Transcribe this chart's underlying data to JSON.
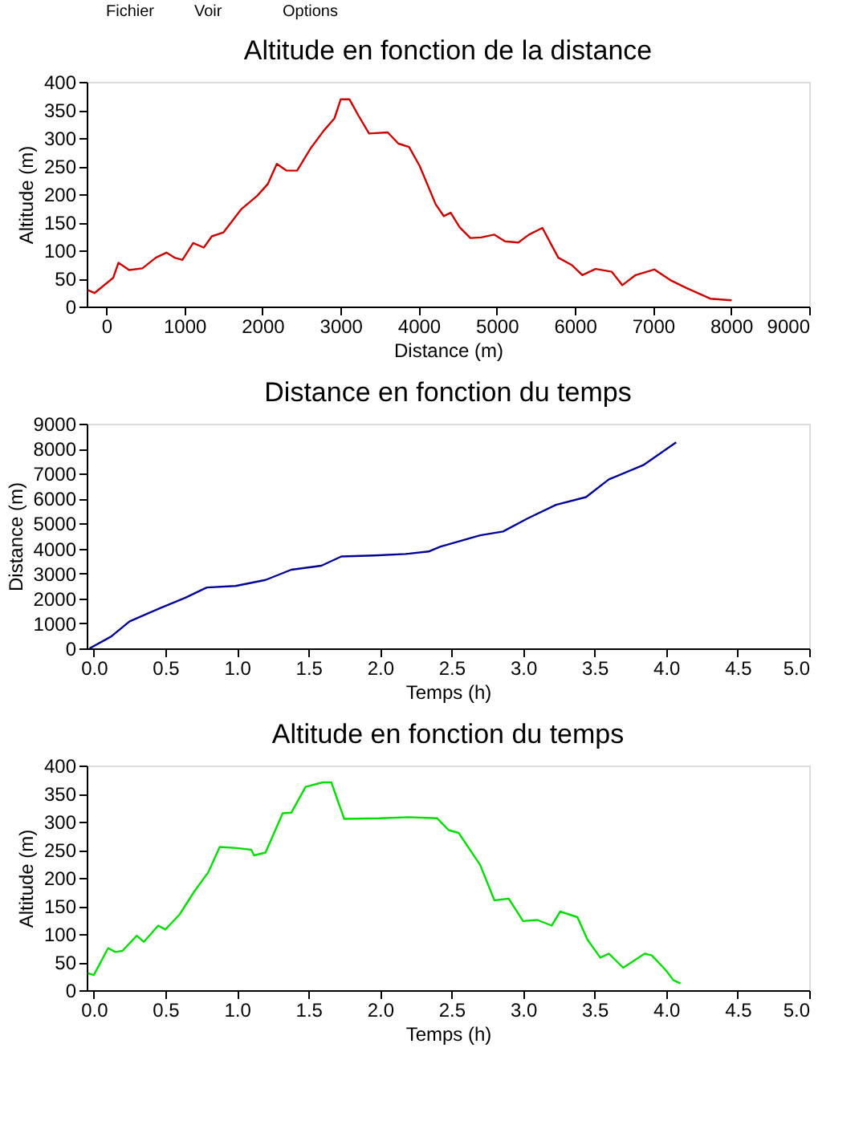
{
  "chart_data": [
    {
      "type": "line",
      "title": "Altitude en fonction de la distance",
      "xlabel": "Distance (m)",
      "ylabel": "Altitude (m)",
      "annotations": [
        "Fichier",
        "Voir",
        "Options"
      ],
      "grid": false,
      "legend": false,
      "line_style": "solid",
      "marker": "none",
      "x": [
        -232,
        -150,
        89,
        157,
        294,
        464,
        635,
        771,
        874,
        976,
        1113,
        1249,
        1352,
        1502,
        1727,
        1932,
        2068,
        2184,
        2307,
        2444,
        2614,
        2785,
        2922,
        3003,
        3113,
        3229,
        3365,
        3604,
        3741,
        3877,
        4014,
        4218,
        4321,
        4410,
        4526,
        4662,
        4799,
        4969,
        5106,
        5276,
        5413,
        5584,
        5788,
        5959,
        6096,
        6266,
        6471,
        6608,
        6778,
        7017,
        7222,
        7427,
        7734,
        8007
      ],
      "series": [
        {
          "color": "#cc0000",
          "values": [
            29,
            24,
            51,
            78,
            65,
            68,
            87,
            96,
            87,
            83,
            113,
            105,
            125,
            132,
            173,
            197,
            218,
            254,
            242,
            242,
            281,
            313,
            335,
            369,
            369,
            340,
            308,
            310,
            290,
            284,
            250,
            182,
            161,
            167,
            141,
            122,
            123,
            128,
            116,
            114,
            128,
            140,
            87,
            74,
            56,
            67,
            62,
            38,
            56,
            66,
            47,
            33,
            14,
            11
          ]
        }
      ],
      "xlim": [
        -250,
        9000
      ],
      "xticks": [
        0,
        1000,
        2000,
        3000,
        4000,
        5000,
        6000,
        7000,
        8000,
        9000
      ],
      "ylim": [
        0,
        400
      ],
      "yticks": [
        0,
        50,
        100,
        150,
        200,
        250,
        300,
        350,
        400
      ]
    },
    {
      "type": "line",
      "title": "Distance en fonction du temps",
      "xlabel": "Temps (h)",
      "ylabel": "Distance (m)",
      "grid": false,
      "legend": false,
      "line_style": "solid",
      "marker": "none",
      "x": [
        -0.03,
        0.12,
        0.25,
        0.47,
        0.64,
        0.79,
        0.99,
        1.2,
        1.38,
        1.59,
        1.73,
        1.96,
        2.18,
        2.34,
        2.42,
        2.7,
        2.86,
        3.03,
        3.23,
        3.44,
        3.6,
        3.84,
        4.07
      ],
      "series": [
        {
          "color": "#000099",
          "values": [
            0,
            470,
            1080,
            1630,
            2030,
            2440,
            2500,
            2740,
            3150,
            3310,
            3680,
            3720,
            3780,
            3880,
            4070,
            4530,
            4680,
            5200,
            5750,
            6060,
            6770,
            7340,
            8250
          ]
        }
      ],
      "xlim": [
        -0.05,
        5
      ],
      "xticks": [
        {
          "value": 0,
          "label": "0.0"
        },
        0.5,
        {
          "value": 1,
          "label": "1.0"
        },
        1.5,
        {
          "value": 2,
          "label": "2.0"
        },
        2.5,
        {
          "value": 3,
          "label": "3.0"
        },
        3.5,
        {
          "value": 4,
          "label": "4.0"
        },
        4.5,
        {
          "value": 5,
          "label": "5.0"
        }
      ],
      "ylim": [
        0,
        9000
      ],
      "yticks": [
        0,
        1000,
        2000,
        3000,
        4000,
        5000,
        6000,
        7000,
        8000,
        9000
      ]
    },
    {
      "type": "line",
      "title": "Altitude en fonction du temps",
      "xlabel": "Temps (h)",
      "ylabel": "Altitude (m)",
      "grid": false,
      "legend": false,
      "line_style": "solid",
      "marker": "none",
      "x": [
        -0.04,
        0.0,
        0.1,
        0.15,
        0.2,
        0.3,
        0.35,
        0.45,
        0.5,
        0.6,
        0.7,
        0.8,
        0.88,
        1.0,
        1.1,
        1.12,
        1.2,
        1.32,
        1.38,
        1.48,
        1.6,
        1.66,
        1.75,
        2.0,
        2.2,
        2.4,
        2.48,
        2.55,
        2.7,
        2.8,
        2.9,
        3.0,
        3.1,
        3.2,
        3.26,
        3.38,
        3.45,
        3.54,
        3.6,
        3.7,
        3.85,
        3.9,
        4.0,
        4.05,
        4.1
      ],
      "series": [
        {
          "color": "#00dd00",
          "values": [
            30,
            27,
            75,
            68,
            70,
            97,
            86,
            115,
            108,
            135,
            175,
            210,
            255,
            253,
            250,
            240,
            245,
            315,
            316,
            362,
            370,
            370,
            305,
            306,
            308,
            306,
            285,
            280,
            223,
            160,
            163,
            123,
            125,
            115,
            140,
            130,
            90,
            58,
            65,
            40,
            65,
            62,
            35,
            18,
            12
          ]
        }
      ],
      "xlim": [
        -0.05,
        5
      ],
      "xticks": [
        {
          "value": 0,
          "label": "0.0"
        },
        0.5,
        {
          "value": 1,
          "label": "1.0"
        },
        1.5,
        {
          "value": 2,
          "label": "2.0"
        },
        2.5,
        {
          "value": 3,
          "label": "3.0"
        },
        3.5,
        {
          "value": 4,
          "label": "4.0"
        },
        4.5,
        {
          "value": 5,
          "label": "5.0"
        }
      ],
      "ylim": [
        0,
        400
      ],
      "yticks": [
        0,
        50,
        100,
        150,
        200,
        250,
        300,
        350,
        400
      ]
    }
  ]
}
